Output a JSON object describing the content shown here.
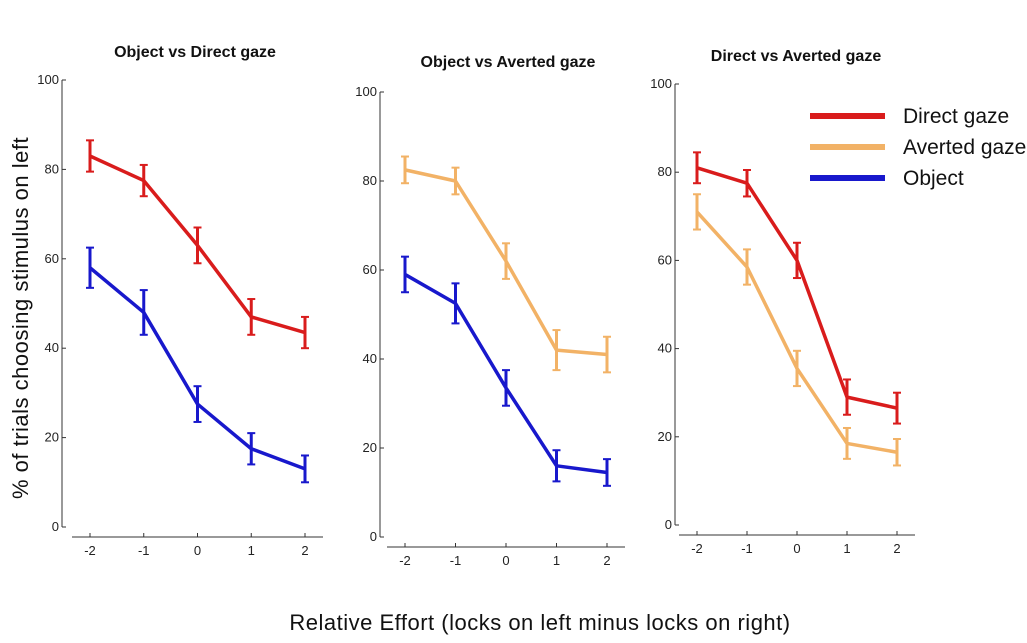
{
  "figure": {
    "ylabel": "% of trials choosing stimulus on left",
    "xlabel": "Relative Effort (locks on left minus locks on right)"
  },
  "colors": {
    "direct": "#d91c1c",
    "averted": "#f2b266",
    "object": "#1818cc"
  },
  "legend": [
    {
      "label": "Direct gaze",
      "color": "#d91c1c"
    },
    {
      "label": "Averted gaze",
      "color": "#f2b266"
    },
    {
      "label": "Object",
      "color": "#1818cc"
    }
  ],
  "legend_placement": "top-right",
  "chart_data": [
    {
      "type": "line",
      "title": "Object vs Direct gaze",
      "x": [
        -2,
        -1,
        0,
        1,
        2
      ],
      "xticks": [
        "-2",
        "-1",
        "0",
        "1",
        "2"
      ],
      "yticks": [
        "0",
        "20",
        "40",
        "60",
        "80",
        "100"
      ],
      "ylim": [
        0,
        100
      ],
      "grid": false,
      "series": [
        {
          "name": "Direct gaze",
          "color": "#d91c1c",
          "values": [
            83,
            77.5,
            63,
            47,
            43.5
          ],
          "errors": [
            3.5,
            3.5,
            4,
            4,
            3.5
          ]
        },
        {
          "name": "Object",
          "color": "#1818cc",
          "values": [
            58,
            48,
            27.5,
            17.5,
            13
          ],
          "errors": [
            4.5,
            5,
            4,
            3.5,
            3
          ]
        }
      ]
    },
    {
      "type": "line",
      "title": "Object vs Averted gaze",
      "x": [
        -2,
        -1,
        0,
        1,
        2
      ],
      "xticks": [
        "-2",
        "-1",
        "0",
        "1",
        "2"
      ],
      "yticks": [
        "0",
        "20",
        "40",
        "60",
        "80",
        "100"
      ],
      "ylim": [
        0,
        100
      ],
      "grid": false,
      "series": [
        {
          "name": "Averted gaze",
          "color": "#f2b266",
          "values": [
            82.5,
            80,
            62,
            42,
            41
          ],
          "errors": [
            3,
            3,
            4,
            4.5,
            4
          ]
        },
        {
          "name": "Object",
          "color": "#1818cc",
          "values": [
            59,
            52.5,
            33.5,
            16,
            14.5
          ],
          "errors": [
            4,
            4.5,
            4,
            3.5,
            3
          ]
        }
      ]
    },
    {
      "type": "line",
      "title": "Direct vs Averted gaze",
      "x": [
        -2,
        -1,
        0,
        1,
        2
      ],
      "xticks": [
        "-2",
        "-1",
        "0",
        "1",
        "2"
      ],
      "yticks": [
        "0",
        "20",
        "40",
        "60",
        "80",
        "100"
      ],
      "ylim": [
        0,
        100
      ],
      "grid": false,
      "series": [
        {
          "name": "Direct gaze",
          "color": "#d91c1c",
          "values": [
            81,
            77.5,
            60,
            29,
            26.5
          ],
          "errors": [
            3.5,
            3,
            4,
            4,
            3.5
          ]
        },
        {
          "name": "Averted gaze",
          "color": "#f2b266",
          "values": [
            71,
            58.5,
            35.5,
            18.5,
            16.5
          ],
          "errors": [
            4,
            4,
            4,
            3.5,
            3
          ]
        }
      ]
    }
  ]
}
